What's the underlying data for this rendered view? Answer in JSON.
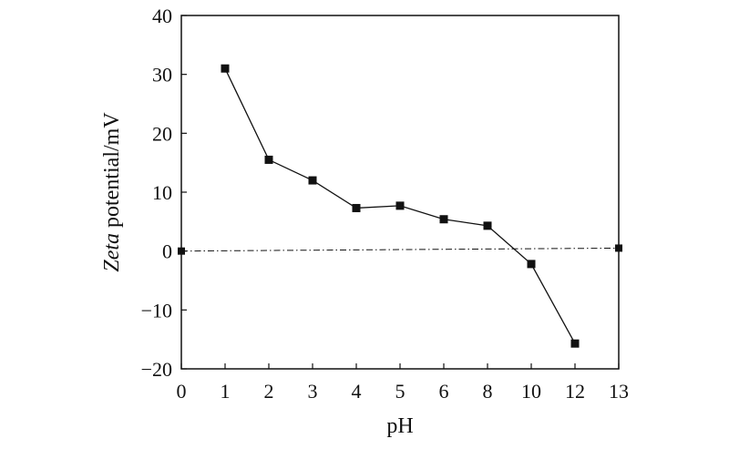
{
  "chart_data": {
    "type": "line",
    "title": "",
    "xlabel": "pH",
    "ylabel_italic": "Zeta",
    "ylabel_rest": " potential/mV",
    "x_categories": [
      "0",
      "1",
      "2",
      "3",
      "4",
      "5",
      "6",
      "8",
      "10",
      "12",
      "13"
    ],
    "y_ticks": [
      -20,
      -10,
      0,
      10,
      20,
      30,
      40
    ],
    "ylim": [
      -20,
      40
    ],
    "grid": false,
    "series": [
      {
        "x": [
          "1",
          "2",
          "3",
          "4",
          "5",
          "6",
          "8",
          "10",
          "12"
        ],
        "y": [
          31.0,
          15.5,
          12.0,
          7.3,
          7.7,
          5.4,
          4.3,
          -2.2,
          -15.7
        ],
        "marker": "square",
        "color": "#111111"
      }
    ],
    "reference_line": {
      "x": [
        "0",
        "13"
      ],
      "y": [
        0.0,
        0.5
      ],
      "style": "dash-dot",
      "marker": "square"
    }
  }
}
